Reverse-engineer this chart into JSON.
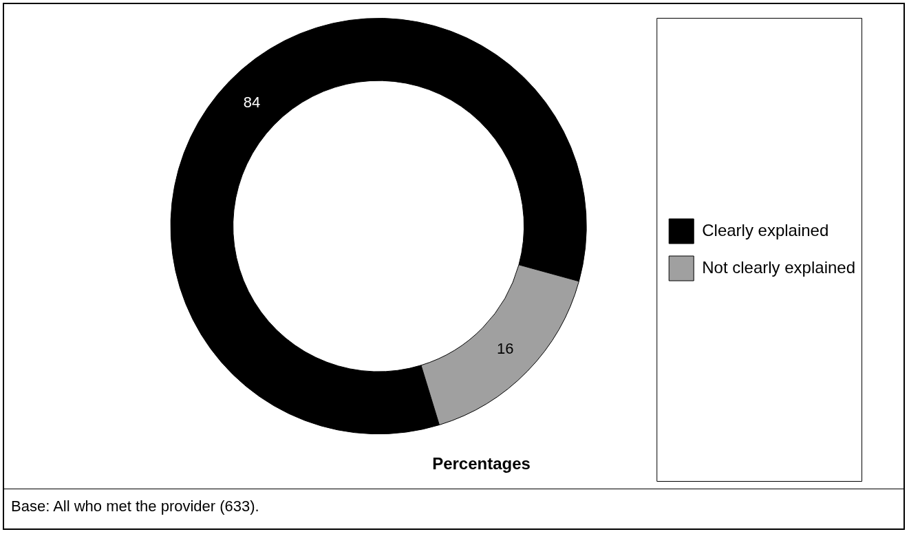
{
  "chart_data": {
    "type": "donut",
    "title": "Percentages",
    "categories": [
      "Clearly explained",
      "Not clearly explained"
    ],
    "values": [
      84,
      16
    ],
    "colors": [
      "#000000",
      "#a0a0a0"
    ],
    "data_labels": true,
    "legend": "right",
    "annotations": [
      "Base: All who met the provider (633)."
    ]
  }
}
